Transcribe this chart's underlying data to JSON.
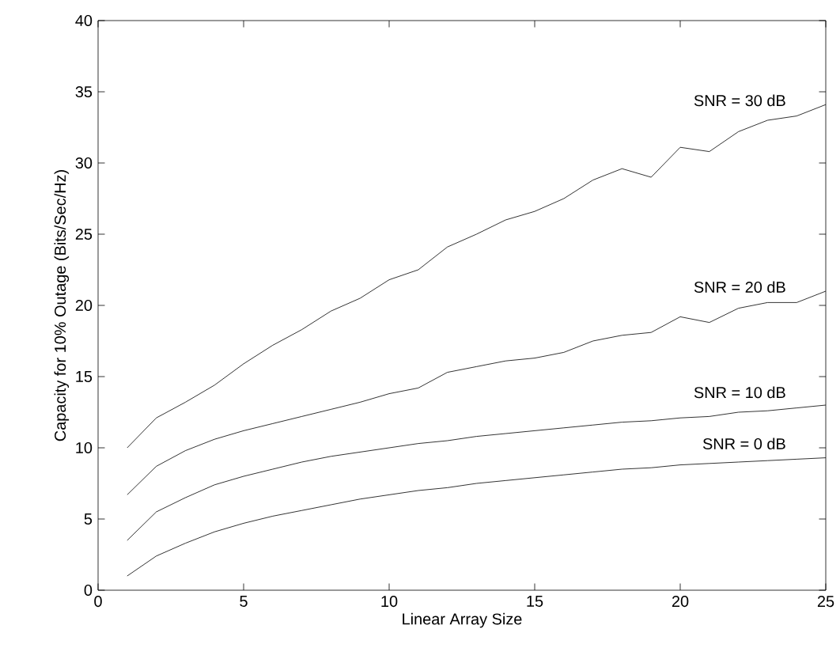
{
  "chart_data": {
    "type": "line",
    "xlabel": "Linear Array Size",
    "ylabel": "Capacity for 10% Outage (Bits/Sec/Hz)",
    "x": [
      1,
      2,
      3,
      4,
      5,
      6,
      7,
      8,
      9,
      10,
      11,
      12,
      13,
      14,
      15,
      16,
      17,
      18,
      19,
      20,
      21,
      22,
      23,
      24,
      25
    ],
    "xlim": [
      0,
      25
    ],
    "xticks": [
      0,
      5,
      10,
      15,
      20,
      25
    ],
    "ylim": [
      0,
      40
    ],
    "yticks": [
      0,
      5,
      10,
      15,
      20,
      25,
      30,
      35,
      40
    ],
    "grid": false,
    "legend": "right",
    "marker": "none",
    "line_style": "solid",
    "series": [
      {
        "name": "SNR = 30 dB",
        "color": "#000000",
        "values": [
          10.0,
          12.1,
          13.2,
          14.4,
          15.9,
          17.2,
          18.3,
          19.6,
          20.5,
          21.8,
          22.5,
          24.1,
          25.0,
          26.0,
          26.6,
          27.5,
          28.8,
          29.6,
          29.0,
          31.1,
          30.8,
          32.2,
          33.0,
          33.3,
          34.1
        ]
      },
      {
        "name": "SNR = 20 dB",
        "color": "#000000",
        "values": [
          6.7,
          8.7,
          9.8,
          10.6,
          11.2,
          11.7,
          12.2,
          12.7,
          13.2,
          13.8,
          14.2,
          15.3,
          15.7,
          16.1,
          16.3,
          16.7,
          17.5,
          17.9,
          18.1,
          19.2,
          18.8,
          19.8,
          20.2,
          20.2,
          21.0
        ]
      },
      {
        "name": "SNR = 10 dB",
        "color": "#000000",
        "values": [
          3.5,
          5.5,
          6.5,
          7.4,
          8.0,
          8.5,
          9.0,
          9.4,
          9.7,
          10.0,
          10.3,
          10.5,
          10.8,
          11.0,
          11.2,
          11.4,
          11.6,
          11.8,
          11.9,
          12.1,
          12.2,
          12.5,
          12.6,
          12.8,
          13.0
        ]
      },
      {
        "name": "SNR = 0 dB",
        "color": "#000000",
        "values": [
          1.0,
          2.4,
          3.3,
          4.1,
          4.7,
          5.2,
          5.6,
          6.0,
          6.4,
          6.7,
          7.0,
          7.2,
          7.5,
          7.7,
          7.9,
          8.1,
          8.3,
          8.5,
          8.6,
          8.8,
          8.9,
          9.0,
          9.1,
          9.2,
          9.3
        ]
      }
    ]
  }
}
